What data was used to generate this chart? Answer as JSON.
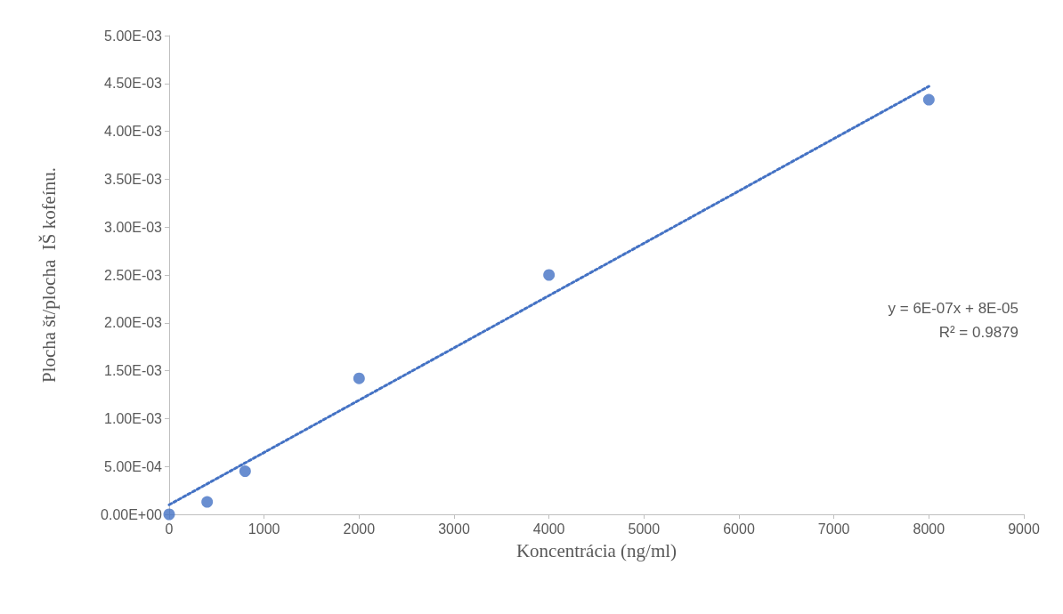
{
  "chart_data": {
    "type": "scatter",
    "xlabel": "Koncentrácia (ng/ml)",
    "ylabel": "Plocha št/plocha  IŠ kofeínu.",
    "x": [
      0,
      400,
      800,
      2000,
      4000,
      8000
    ],
    "series": [
      {
        "color": "#4472c4",
        "marker": "circle",
        "values": [
          0,
          0.00013,
          0.00045,
          0.00142,
          0.0025,
          0.00433
        ]
      },
      {
        "type": "line",
        "color": "#4472c4",
        "marker": "none",
        "line_style": "dotted",
        "x": [
          0,
          8000
        ],
        "values": [
          0.0001,
          0.00447
        ]
      }
    ],
    "xlim": [
      0,
      9000
    ],
    "xticks": [
      0,
      1000,
      2000,
      3000,
      4000,
      5000,
      6000,
      7000,
      8000,
      9000
    ],
    "ylim": [
      0,
      0.005
    ],
    "yticks": [
      {
        "value": 0,
        "label": "0.00E+00"
      },
      {
        "value": 0.0005,
        "label": "5.00E-04"
      },
      {
        "value": 0.001,
        "label": "1.00E-03"
      },
      {
        "value": 0.0015,
        "label": "1.50E-03"
      },
      {
        "value": 0.002,
        "label": "2.00E-03"
      },
      {
        "value": 0.0025,
        "label": "2.50E-03"
      },
      {
        "value": 0.003,
        "label": "3.00E-03"
      },
      {
        "value": 0.0035,
        "label": "3.50E-03"
      },
      {
        "value": 0.004,
        "label": "4.00E-03"
      },
      {
        "value": 0.0045,
        "label": "4.50E-03"
      },
      {
        "value": 0.005,
        "label": "5.00E-03"
      }
    ],
    "annotations": [
      "y = 6E-07x + 8E-05",
      "R² = 0.9879"
    ],
    "grid": false
  }
}
